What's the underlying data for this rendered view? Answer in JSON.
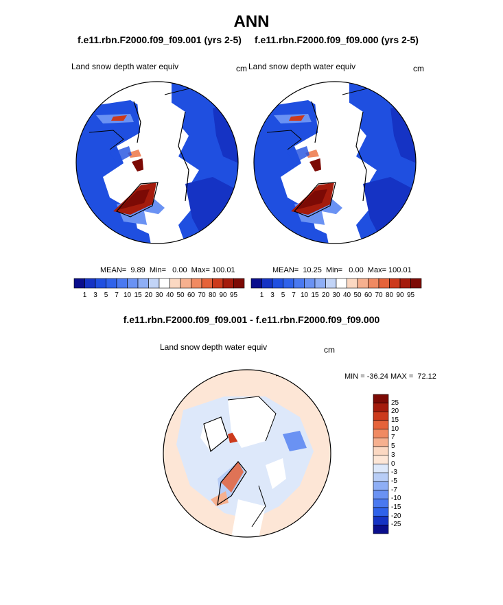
{
  "title": "ANN",
  "panels": [
    {
      "case_title": "f.e11.rbn.F2000.f09_f09.001 (yrs 2-5)",
      "variable": "Land snow depth water equiv",
      "units": "cm",
      "stats": "MEAN=  9.89  Min=   0.00  Max= 100.01"
    },
    {
      "case_title": "f.e11.rbn.F2000.f09_f09.000 (yrs 2-5)",
      "variable": "Land snow depth water equiv",
      "units": "cm",
      "stats": "MEAN=  10.25  Min=   0.00  Max= 100.01"
    }
  ],
  "diff": {
    "title": "f.e11.rbn.F2000.f09_f09.001 - f.e11.rbn.F2000.f09_f09.000",
    "variable": "Land snow depth water equiv",
    "units": "cm",
    "minmax": "MIN = -36.24 MAX =  72.12"
  },
  "colorbar_main": {
    "ticks": [
      "1",
      "3",
      "5",
      "7",
      "10",
      "15",
      "20",
      "30",
      "40",
      "50",
      "60",
      "70",
      "80",
      "90",
      "95"
    ],
    "colors": [
      "#0a0e8c",
      "#1533c4",
      "#1f4fe0",
      "#2f62ea",
      "#4a79f0",
      "#6a92f3",
      "#8eaef5",
      "#c2d4f7",
      "#ffffff",
      "#fbd8c2",
      "#f6b08f",
      "#f08a62",
      "#e5633a",
      "#cc3a1c",
      "#a41b0c",
      "#7c0a05"
    ]
  },
  "colorbar_diff": {
    "ticks": [
      "25",
      "20",
      "15",
      "10",
      "7",
      "5",
      "3",
      "0",
      "-3",
      "-5",
      "-7",
      "-10",
      "-15",
      "-20",
      "-25"
    ],
    "colors": [
      "#7c0a05",
      "#a41b0c",
      "#cc3a1c",
      "#e5633a",
      "#f08a62",
      "#f6b08f",
      "#fbd8c2",
      "#fde6d6",
      "#dde8fa",
      "#b8cdf6",
      "#8eaef5",
      "#6a92f3",
      "#4a79f0",
      "#2f62ea",
      "#1533c4",
      "#0a0e8c"
    ]
  }
}
